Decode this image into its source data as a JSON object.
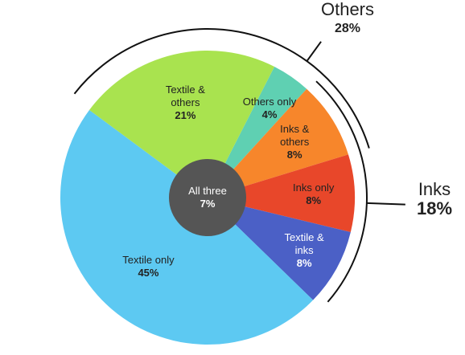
{
  "chart_data": {
    "type": "pie",
    "categories": [
      "Others only",
      "Inks & others",
      "Inks only",
      "Textile & inks",
      "Textile only",
      "Textile & others"
    ],
    "values": [
      4,
      8,
      8,
      8,
      45,
      21
    ],
    "value_labels": [
      "4%",
      "8%",
      "8%",
      "8%",
      "45%",
      "21%"
    ],
    "colors": [
      "#5fd0b2",
      "#f7862b",
      "#e8472a",
      "#4b60c6",
      "#5dc9f2",
      "#a9e34f"
    ],
    "center": {
      "label": "All three",
      "value": 7,
      "value_label": "7%",
      "color": "#555555"
    },
    "groups": [
      {
        "name": "Others",
        "value": 28,
        "value_label": "28%"
      },
      {
        "name": "Inks",
        "value": 18,
        "value_label": "18%"
      }
    ]
  }
}
